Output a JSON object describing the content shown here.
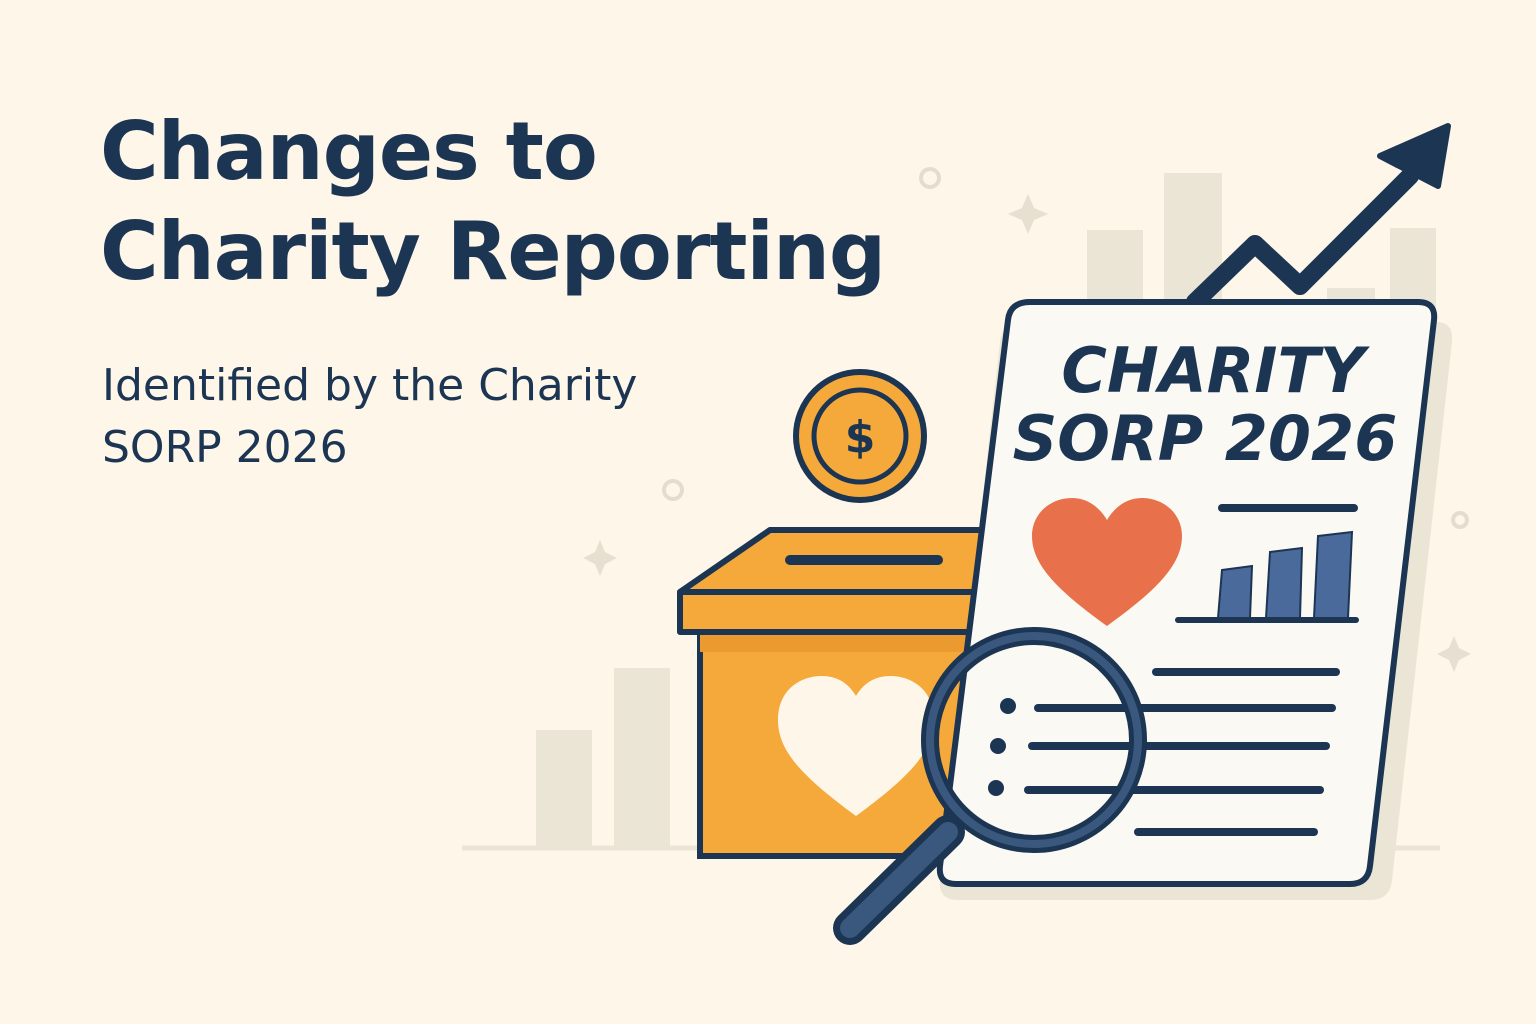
{
  "headline": {
    "line1": "Changes to",
    "line2": "Charity Reporting"
  },
  "subtitle": {
    "line1": "Identified by the Charity",
    "line2": "SORP 2026"
  },
  "document": {
    "title_line1": "CHARITY",
    "title_line2": "SORP 2026"
  },
  "coin": {
    "symbol": "$"
  },
  "icons": [
    "coin-icon",
    "donation-box-icon",
    "heart-icon",
    "report-document-icon",
    "bar-chart-icon",
    "magnifying-glass-icon",
    "trend-arrow-icon",
    "sparkle-icon"
  ],
  "colors": {
    "background": "#fdf6e9",
    "navy": "#1b3553",
    "box_orange": "#f4a93a",
    "heart_coral": "#e8704a",
    "bar_blue": "#4a6a9c"
  }
}
